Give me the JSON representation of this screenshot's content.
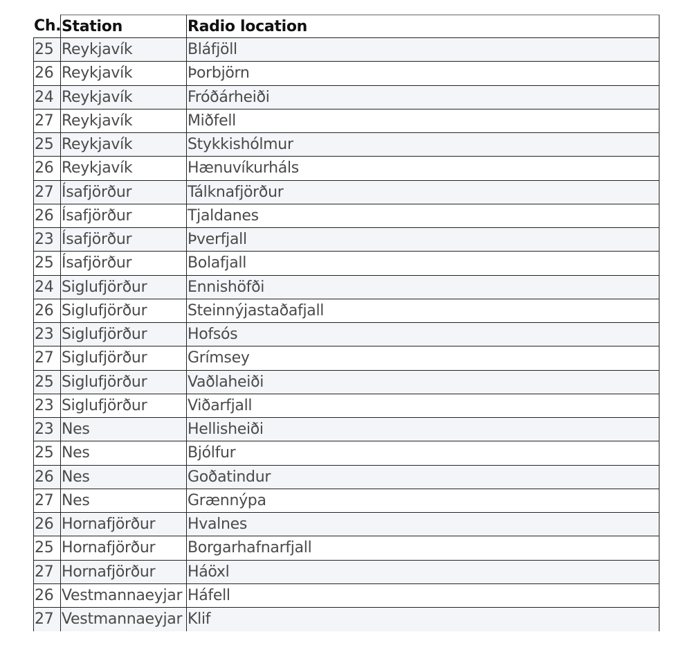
{
  "table": {
    "headers": [
      "Ch.",
      "Station",
      "Radio location"
    ],
    "rows": [
      [
        "25",
        "Reykjavík",
        "Bláfjöll"
      ],
      [
        "26",
        "Reykjavík",
        "Þorbjörn"
      ],
      [
        "24",
        "Reykjavík",
        "Fróðárheiði"
      ],
      [
        "27",
        "Reykjavík",
        "Miðfell"
      ],
      [
        "25",
        "Reykjavík",
        "Stykkishólmur"
      ],
      [
        "26",
        "Reykjavík",
        "Hænuvíkurháls"
      ],
      [
        "27",
        "Ísafjörður",
        "Tálknafjörður"
      ],
      [
        "26",
        "Ísafjörður",
        "Tjaldanes"
      ],
      [
        "23",
        "Ísafjörður",
        "Þverfjall"
      ],
      [
        "25",
        "Ísafjörður",
        "Bolafjall"
      ],
      [
        "24",
        "Siglufjörður",
        "Ennishöfði"
      ],
      [
        "26",
        "Siglufjörður",
        "Steinnýjastaðafjall"
      ],
      [
        "23",
        "Siglufjörður",
        "Hofsós"
      ],
      [
        "27",
        "Siglufjörður",
        "Grímsey"
      ],
      [
        "25",
        "Siglufjörður",
        "Vaðlaheiði"
      ],
      [
        "23",
        "Siglufjörður",
        "Viðarfjall"
      ],
      [
        "23",
        "Nes",
        "Hellisheiði"
      ],
      [
        "25",
        "Nes",
        "Bjólfur"
      ],
      [
        "26",
        "Nes",
        "Goðatindur"
      ],
      [
        "27",
        "Nes",
        "Grænnýpa"
      ],
      [
        "26",
        "Hornafjörður",
        "Hvalnes"
      ],
      [
        "25",
        "Hornafjörður",
        "Borgarhafnarfjall"
      ],
      [
        "27",
        "Hornafjörður",
        "Háöxl"
      ],
      [
        "26",
        "Vestmannaeyjar",
        "Háfell"
      ],
      [
        "27",
        "Vestmannaeyjar",
        "Klif"
      ]
    ]
  }
}
